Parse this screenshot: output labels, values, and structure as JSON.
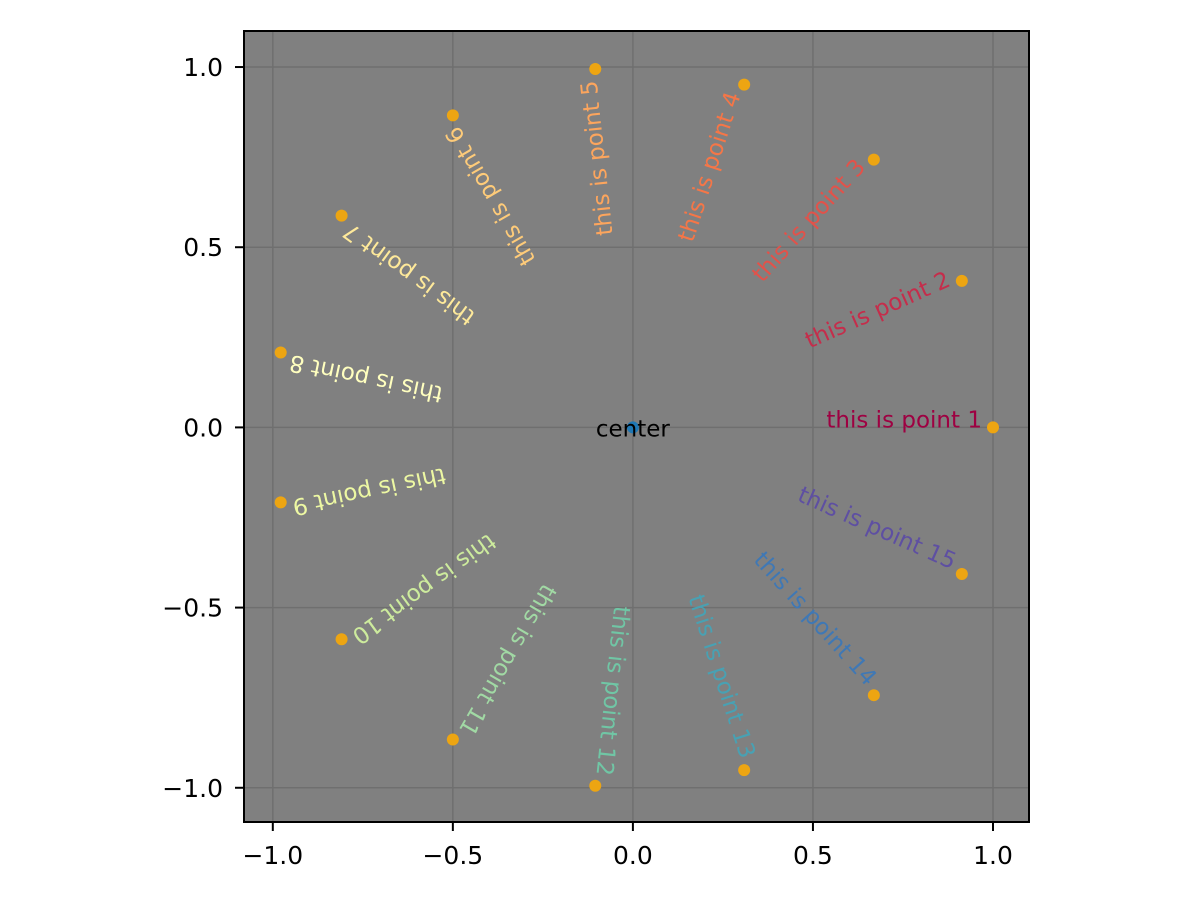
{
  "chart_data": {
    "type": "scatter",
    "title": "",
    "xlabel": "",
    "ylabel": "",
    "axes": {
      "facecolor": "#808080",
      "grid": true,
      "grid_color": "#6f6f6f",
      "spine_color": "#000000",
      "tick_color": "#000000",
      "tick_label_color": "#000000",
      "xlim": [
        -1.08,
        1.1
      ],
      "ylim": [
        -1.095,
        1.1
      ],
      "xticks": {
        "values": [
          -1.0,
          -0.5,
          0.0,
          0.5,
          1.0
        ],
        "labels": [
          "−1.0",
          "−0.5",
          "0.0",
          "0.5",
          "1.0"
        ]
      },
      "yticks": {
        "values": [
          -1.0,
          -0.5,
          0.0,
          0.5,
          1.0
        ],
        "labels": [
          "−1.0",
          "−0.5",
          "0.0",
          "0.5",
          "1.0"
        ]
      }
    },
    "marker_color": "#eda512",
    "center": {
      "x": 0,
      "y": 0,
      "label": "center",
      "marker_color": "#1f77b4",
      "label_color": "#000000"
    },
    "points": [
      {
        "label": "this is point 1",
        "x": 1.0,
        "y": 0.0,
        "angle_deg": 0,
        "color": "#9e0142"
      },
      {
        "label": "this is point 2",
        "x": 0.9135,
        "y": 0.4067,
        "angle_deg": 24,
        "color": "#c52d4b"
      },
      {
        "label": "this is point 3",
        "x": 0.6691,
        "y": 0.7431,
        "angle_deg": 48,
        "color": "#e2524a"
      },
      {
        "label": "this is point 4",
        "x": 0.309,
        "y": 0.9511,
        "angle_deg": 72,
        "color": "#f57647"
      },
      {
        "label": "this is point 5",
        "x": -0.1045,
        "y": 0.9945,
        "angle_deg": 96,
        "color": "#fca55d"
      },
      {
        "label": "this is point 6",
        "x": -0.5,
        "y": 0.866,
        "angle_deg": 120,
        "color": "#fecb79"
      },
      {
        "label": "this is point 7",
        "x": -0.809,
        "y": 0.5878,
        "angle_deg": 144,
        "color": "#fee99a"
      },
      {
        "label": "this is point 8",
        "x": -0.9781,
        "y": 0.2079,
        "angle_deg": 168,
        "color": "#ffffbf"
      },
      {
        "label": "this is point 9",
        "x": -0.9781,
        "y": -0.2079,
        "angle_deg": 192,
        "color": "#edf8a3"
      },
      {
        "label": "this is point 10",
        "x": -0.809,
        "y": -0.5878,
        "angle_deg": 216,
        "color": "#cdeb9d"
      },
      {
        "label": "this is point 11",
        "x": -0.5,
        "y": -0.866,
        "angle_deg": 240,
        "color": "#a1d9a4"
      },
      {
        "label": "this is point 12",
        "x": -0.1045,
        "y": -0.9945,
        "angle_deg": 264,
        "color": "#70c6a5"
      },
      {
        "label": "this is point 13",
        "x": 0.309,
        "y": -0.9511,
        "angle_deg": 288,
        "color": "#48a1b3"
      },
      {
        "label": "this is point 14",
        "x": 0.6691,
        "y": -0.7431,
        "angle_deg": 312,
        "color": "#3f78b5"
      },
      {
        "label": "this is point 15",
        "x": 0.9135,
        "y": -0.4067,
        "angle_deg": 336,
        "color": "#5e4fa2"
      }
    ]
  }
}
